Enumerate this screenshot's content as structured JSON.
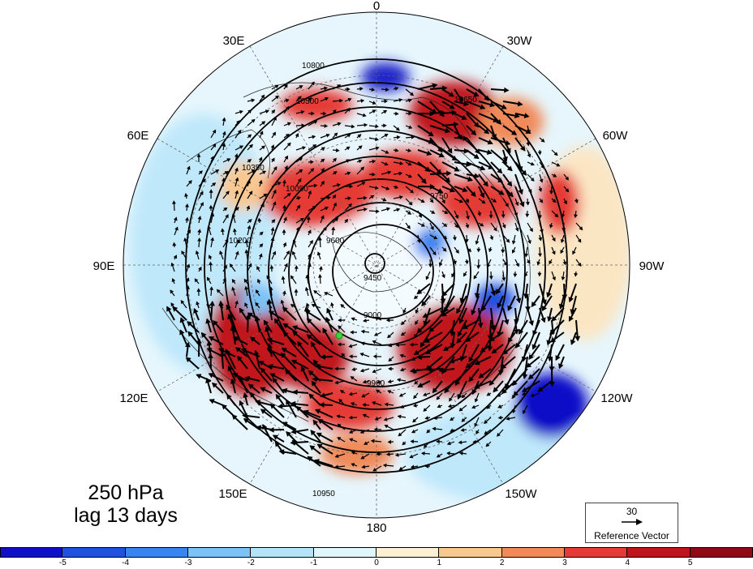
{
  "title": {
    "line1": "250 hPa",
    "line2": "lag 13 days"
  },
  "longitude_labels": [
    {
      "text": "0",
      "lon": 0
    },
    {
      "text": "30W",
      "lon": -30
    },
    {
      "text": "60W",
      "lon": -60
    },
    {
      "text": "90W",
      "lon": -90
    },
    {
      "text": "120W",
      "lon": -120
    },
    {
      "text": "150W",
      "lon": -150
    },
    {
      "text": "180",
      "lon": 180
    },
    {
      "text": "150E",
      "lon": 150
    },
    {
      "text": "120E",
      "lon": 120
    },
    {
      "text": "90E",
      "lon": 90
    },
    {
      "text": "60E",
      "lon": 60
    },
    {
      "text": "30E",
      "lon": 30
    }
  ],
  "contour_labels": [
    "10800",
    "10650",
    "10500",
    "10350",
    "10200",
    "10050",
    "9900",
    "9750",
    "9600",
    "9450",
    "9000",
    "10950"
  ],
  "reference_vector": {
    "value": "30",
    "label": "Reference Vector"
  },
  "colorbar": {
    "ticks": [
      "-5",
      "-4",
      "-3",
      "-2",
      "-1",
      "0",
      "1",
      "2",
      "3",
      "4",
      "5"
    ],
    "colors": [
      "#1010c8",
      "#2050e0",
      "#3a84f0",
      "#7cc2f5",
      "#b4e4fa",
      "#e0f6fd",
      "#fdf0d2",
      "#f8c890",
      "#f08a5a",
      "#e63a36",
      "#c0141c",
      "#8e0a14"
    ]
  },
  "colors": {
    "ridge_red": "#c0141c",
    "trough_blue": "#1a22c8",
    "marker": "#3ad63a"
  }
}
